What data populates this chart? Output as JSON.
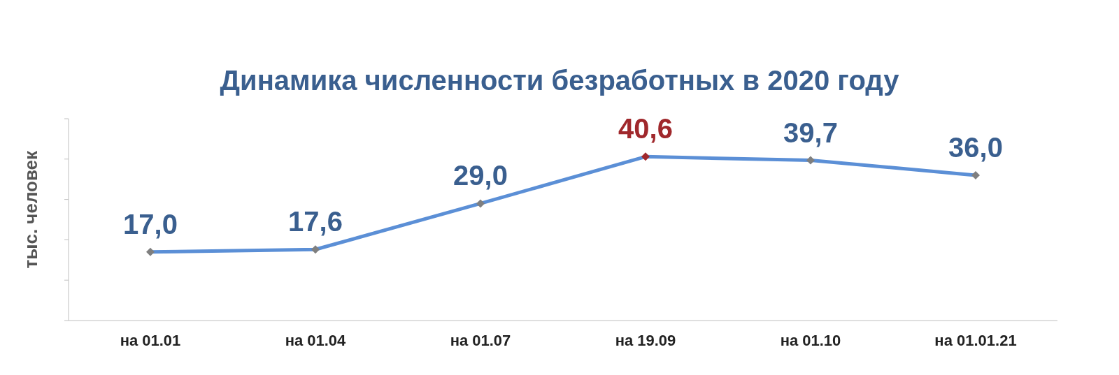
{
  "chart_data": {
    "type": "line",
    "title": "Динамика численности безработных в 2020 году",
    "ylabel": "тыс. человек",
    "categories": [
      "на 01.01",
      "на 01.04",
      "на 01.07",
      "на 19.09",
      "на 01.10",
      "на 01.01.21"
    ],
    "series": [
      {
        "color": "#5b8fd6",
        "values": [
          17.0,
          17.6,
          29.0,
          40.6,
          39.7,
          36.0
        ],
        "colors": [
          "#7f7f7f",
          "#7f7f7f",
          "#7f7f7f",
          "#a0282c",
          "#7f7f7f",
          "#7f7f7f"
        ],
        "value_labels": [
          "17,0",
          "17,6",
          "29,0",
          "40,6",
          "39,7",
          "36,0"
        ]
      }
    ],
    "ylim": [
      0,
      50
    ],
    "yticks": [
      {
        "value": 0,
        "label": null
      },
      {
        "value": 10,
        "label": null
      },
      {
        "value": 20,
        "label": null
      },
      {
        "value": 30,
        "label": null
      },
      {
        "value": 40,
        "label": null
      },
      {
        "value": 50,
        "label": null
      }
    ],
    "marker": "diamond",
    "tick_labels": "x"
  }
}
